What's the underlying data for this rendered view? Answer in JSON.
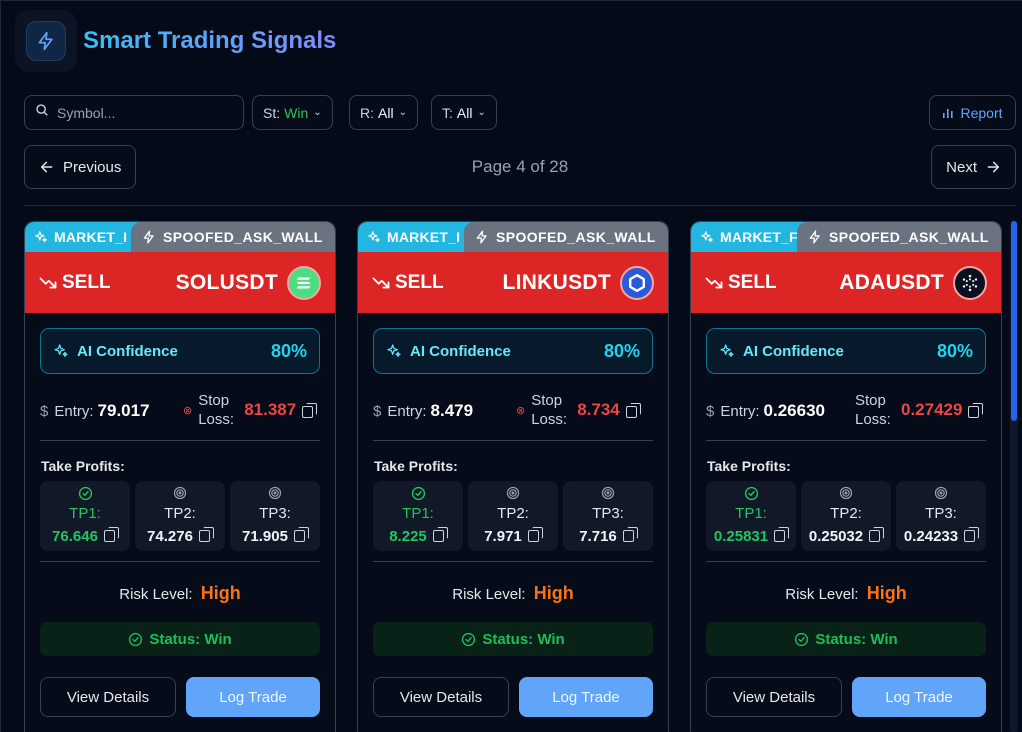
{
  "app": {
    "title": "Smart Trading Signals",
    "logo_icon": "lightning-bolt-icon"
  },
  "filters": {
    "search_placeholder": "Symbol...",
    "status": {
      "label": "St:",
      "value": "Win"
    },
    "risk": {
      "label": "R:",
      "value": "All"
    },
    "type": {
      "label": "T:",
      "value": "All"
    },
    "report_label": "Report"
  },
  "pager": {
    "previous_label": "Previous",
    "next_label": "Next",
    "info": "Page 4 of 28"
  },
  "labels": {
    "ai_confidence": "AI Confidence",
    "entry": "Entry:",
    "stop_loss": "Stop Loss:",
    "take_profits": "Take Profits:",
    "tp1": "TP1:",
    "tp2": "TP2:",
    "tp3": "TP3:",
    "risk_level": "Risk Level:",
    "view_details": "View Details",
    "log_trade": "Log Trade"
  },
  "cards": [
    {
      "tag1": "MARKET_I",
      "tag2": "SPOOFED_ASK_WALL",
      "side": "SELL",
      "symbol": "SOLUSDT",
      "coin_color": "#4ade80",
      "coin_icon": "solana-icon",
      "confidence": "80%",
      "entry": "79.017",
      "stop_loss": "81.387",
      "tp1": "76.646",
      "tp2": "74.276",
      "tp3": "71.905",
      "risk": "High",
      "status": "Status: Win"
    },
    {
      "tag1": "MARKET_I",
      "tag2": "SPOOFED_ASK_WALL",
      "side": "SELL",
      "symbol": "LINKUSDT",
      "coin_color": "#2a5ada",
      "coin_icon": "chainlink-icon",
      "confidence": "80%",
      "entry": "8.479",
      "stop_loss": "8.734",
      "tp1": "8.225",
      "tp2": "7.971",
      "tp3": "7.716",
      "risk": "High",
      "status": "Status: Win"
    },
    {
      "tag1": "MARKET_F",
      "tag2": "SPOOFED_ASK_WALL",
      "side": "SELL",
      "symbol": "ADAUSDT",
      "coin_color": "#0b1120",
      "coin_icon": "cardano-icon",
      "confidence": "80%",
      "entry": "0.26630",
      "stop_loss": "0.27429",
      "tp1": "0.25831",
      "tp2": "0.25032",
      "tp3": "0.24233",
      "risk": "High",
      "status": "Status: Win"
    }
  ]
}
